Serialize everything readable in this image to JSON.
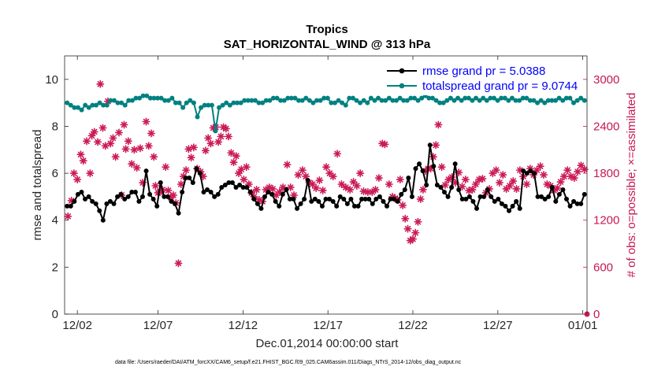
{
  "chart_data": {
    "type": "line",
    "title": "Tropics",
    "subtitle": "SAT_HORIZONTAL_WIND @ 313 hPa",
    "xlabel": "Dec.01,2014 00:00:00 start",
    "ylabel": "rmse and totalspread",
    "ylabel_right": "# of obs: o=possible; ×=assimilated",
    "footnote": "data file: /Users/raeder/DAI/ATM_forcXX/CAM6_setup/f.e21.FHIST_BGC.f09_025.CAM6assim.011/Diags_NTrS_2014-12/obs_diag_output.nc",
    "xlim": [
      0.5,
      31.25
    ],
    "ylim": [
      0,
      11
    ],
    "ylim_right": [
      0,
      3300
    ],
    "x_ticks": [
      1.25,
      6,
      11,
      16,
      21,
      26,
      31
    ],
    "x_tick_labels": [
      "12/02",
      "12/07",
      "12/12",
      "12/17",
      "12/22",
      "12/27",
      "01/01"
    ],
    "y_ticks": [
      0,
      2,
      4,
      6,
      8,
      10
    ],
    "y_tick_labels": [
      "0",
      "2",
      "4",
      "6",
      "8",
      "10"
    ],
    "y_right_ticks": [
      0,
      600,
      1200,
      1800,
      2400,
      3000
    ],
    "y_right_tick_labels": [
      "0",
      "600",
      "1200",
      "1800",
      "2400",
      "3000"
    ],
    "colors": {
      "rmse": "#000000",
      "spread": "#008080",
      "obs": "#cc1a55",
      "legend_text": "#0000ff"
    },
    "series": [
      {
        "name": "rmse grand pr = 5.0388",
        "marker": "filled-circle",
        "values": [
          4.6,
          4.6,
          4.8,
          5.1,
          5.2,
          4.9,
          5.0,
          4.8,
          4.7,
          4.4,
          4.0,
          4.7,
          4.8,
          4.7,
          5.0,
          5.1,
          4.9,
          5.0,
          5.2,
          5.2,
          4.8,
          5.0,
          6.1,
          5.1,
          4.9,
          4.6,
          5.6,
          5.0,
          5.0,
          4.8,
          4.7,
          4.3,
          5.2,
          5.8,
          5.8,
          5.6,
          6.2,
          6.0,
          5.2,
          5.3,
          5.2,
          5.0,
          5.1,
          5.4,
          5.5,
          5.6,
          5.6,
          5.4,
          5.5,
          5.4,
          5.4,
          5.2,
          4.9,
          4.7,
          4.5,
          5.0,
          5.2,
          5.1,
          4.8,
          4.6,
          5.1,
          5.3,
          4.9,
          4.9,
          4.5,
          4.7,
          4.9,
          5.7,
          4.8,
          4.9,
          4.8,
          4.6,
          4.9,
          4.9,
          4.8,
          4.6,
          5.0,
          4.9,
          4.7,
          4.9,
          4.6,
          4.6,
          4.9,
          4.9,
          4.9,
          4.7,
          4.9,
          5.0,
          4.8,
          4.6,
          4.9,
          4.9,
          4.8,
          5.1,
          5.3,
          5.8,
          5.0,
          6.2,
          6.4,
          6.1,
          5.5,
          7.2,
          6.3,
          5.5,
          5.4,
          5.2,
          5.0,
          5.4,
          6.4,
          5.3,
          4.9,
          4.9,
          5.0,
          4.8,
          4.5,
          5.0,
          5.0,
          5.3,
          5.0,
          4.8,
          4.9,
          4.7,
          4.6,
          4.4,
          4.6,
          4.8,
          4.5,
          6.1,
          6.0,
          6.1,
          6.0,
          5.0,
          5.0,
          4.9,
          5.0,
          5.4,
          4.8,
          5.1,
          5.3,
          4.9,
          4.6,
          4.8,
          4.7,
          4.7,
          5.1
        ]
      },
      {
        "name": "totalspread grand pr = 9.0744",
        "marker": "filled-circle",
        "values": [
          9.0,
          8.9,
          8.8,
          8.8,
          8.7,
          8.9,
          8.8,
          8.9,
          8.9,
          9.0,
          8.9,
          8.9,
          9.1,
          9.1,
          9.0,
          9.0,
          8.9,
          9.1,
          9.1,
          9.2,
          9.2,
          9.3,
          9.3,
          9.2,
          9.2,
          9.2,
          9.2,
          9.1,
          9.1,
          9.2,
          9.0,
          9.0,
          8.8,
          9.0,
          9.1,
          9.0,
          8.4,
          8.8,
          8.9,
          8.9,
          8.9,
          7.8,
          8.8,
          8.9,
          9.0,
          8.9,
          9.0,
          9.0,
          9.0,
          9.1,
          9.1,
          9.1,
          9.1,
          9.0,
          9.0,
          9.1,
          9.1,
          9.2,
          9.2,
          9.1,
          9.1,
          9.2,
          9.2,
          9.2,
          9.1,
          9.1,
          9.2,
          9.1,
          9.0,
          9.1,
          9.1,
          9.2,
          9.2,
          9.0,
          9.0,
          9.1,
          9.0,
          8.9,
          9.2,
          9.2,
          9.1,
          9.0,
          9.1,
          9.0,
          9.2,
          9.1,
          9.2,
          9.1,
          9.1,
          9.2,
          9.1,
          9.1,
          9.2,
          9.1,
          9.1,
          9.2,
          9.2,
          9.1,
          9.2,
          9.3,
          9.2,
          9.2,
          9.1,
          9.0,
          9.0,
          9.1,
          9.2,
          9.1,
          9.2,
          9.1,
          9.2,
          9.2,
          9.1,
          9.2,
          9.1,
          9.2,
          9.1,
          9.2,
          9.2,
          9.1,
          9.2,
          9.2,
          9.1,
          9.2,
          9.1,
          9.1,
          9.2,
          9.2,
          9.1,
          9.1,
          9.0,
          9.1,
          9.0,
          9.1,
          9.1,
          9.1,
          9.2,
          9.1,
          9.2,
          9.2,
          9.0,
          9.1,
          9.2,
          9.1
        ]
      }
    ],
    "obs_series": {
      "name": "# of obs (assimilated)",
      "axis": "right",
      "marker": "asterisk",
      "points": [
        [
          0.7,
          1250
        ],
        [
          0.9,
          1450
        ],
        [
          1.05,
          1800
        ],
        [
          1.25,
          1720
        ],
        [
          1.45,
          2040
        ],
        [
          1.6,
          1960
        ],
        [
          1.8,
          2210
        ],
        [
          2.0,
          1800
        ],
        [
          2.1,
          2280
        ],
        [
          2.25,
          2330
        ],
        [
          2.45,
          2200
        ],
        [
          2.6,
          2940
        ],
        [
          2.75,
          2380
        ],
        [
          2.9,
          2150
        ],
        [
          3.05,
          2720
        ],
        [
          3.2,
          2180
        ],
        [
          3.35,
          2250
        ],
        [
          3.5,
          2010
        ],
        [
          3.7,
          2320
        ],
        [
          3.85,
          1520
        ],
        [
          4.0,
          2420
        ],
        [
          4.1,
          2110
        ],
        [
          4.25,
          2210
        ],
        [
          4.45,
          1920
        ],
        [
          4.6,
          2100
        ],
        [
          4.75,
          1870
        ],
        [
          4.95,
          2120
        ],
        [
          5.1,
          1680
        ],
        [
          5.3,
          2460
        ],
        [
          5.45,
          2150
        ],
        [
          5.6,
          2310
        ],
        [
          5.75,
          2010
        ],
        [
          5.85,
          1640
        ],
        [
          6.0,
          1550
        ],
        [
          6.1,
          1560
        ],
        [
          6.25,
          1590
        ],
        [
          6.45,
          1880
        ],
        [
          6.6,
          1580
        ],
        [
          6.75,
          1490
        ],
        [
          6.9,
          1520
        ],
        [
          7.05,
          1420
        ],
        [
          7.2,
          650
        ],
        [
          7.35,
          1660
        ],
        [
          7.5,
          1760
        ],
        [
          7.65,
          1840
        ],
        [
          7.8,
          2110
        ],
        [
          7.95,
          2000
        ],
        [
          8.1,
          2130
        ],
        [
          8.3,
          1860
        ],
        [
          8.5,
          1820
        ],
        [
          8.65,
          1760
        ],
        [
          8.8,
          2090
        ],
        [
          8.95,
          2250
        ],
        [
          9.1,
          2180
        ],
        [
          9.25,
          2380
        ],
        [
          9.4,
          2390
        ],
        [
          9.55,
          2200
        ],
        [
          9.7,
          2270
        ],
        [
          9.85,
          2390
        ],
        [
          10.0,
          2370
        ],
        [
          10.15,
          2270
        ],
        [
          10.3,
          2060
        ],
        [
          10.45,
          1940
        ],
        [
          10.6,
          2020
        ],
        [
          10.75,
          1800
        ],
        [
          10.9,
          1850
        ],
        [
          11.05,
          1720
        ],
        [
          11.2,
          1880
        ],
        [
          11.35,
          1660
        ],
        [
          11.5,
          1550
        ],
        [
          11.65,
          1500
        ],
        [
          11.8,
          1590
        ],
        [
          11.95,
          1460
        ],
        [
          12.15,
          1440
        ],
        [
          12.35,
          1590
        ],
        [
          12.55,
          1620
        ],
        [
          12.75,
          1600
        ],
        [
          12.95,
          1520
        ],
        [
          13.15,
          1560
        ],
        [
          13.35,
          1620
        ],
        [
          13.6,
          1910
        ],
        [
          13.8,
          1620
        ],
        [
          14.0,
          1520
        ],
        [
          14.25,
          1780
        ],
        [
          14.5,
          1840
        ],
        [
          14.7,
          1760
        ],
        [
          14.9,
          1680
        ],
        [
          15.1,
          1660
        ],
        [
          15.3,
          1610
        ],
        [
          15.5,
          1710
        ],
        [
          15.7,
          1580
        ],
        [
          15.9,
          1880
        ],
        [
          16.1,
          1800
        ],
        [
          16.3,
          1760
        ],
        [
          16.55,
          2050
        ],
        [
          16.8,
          1660
        ],
        [
          17.05,
          1620
        ],
        [
          17.3,
          1590
        ],
        [
          17.5,
          1690
        ],
        [
          17.7,
          1640
        ],
        [
          17.9,
          1800
        ],
        [
          18.1,
          1570
        ],
        [
          18.35,
          1560
        ],
        [
          18.6,
          1560
        ],
        [
          18.8,
          1590
        ],
        [
          19.0,
          1740
        ],
        [
          19.2,
          2180
        ],
        [
          19.35,
          2170
        ],
        [
          19.6,
          1660
        ],
        [
          19.8,
          1500
        ],
        [
          19.95,
          1480
        ],
        [
          20.1,
          1460
        ],
        [
          20.25,
          1720
        ],
        [
          20.4,
          1390
        ],
        [
          20.55,
          1220
        ],
        [
          20.7,
          1090
        ],
        [
          20.85,
          940
        ],
        [
          21.0,
          960
        ],
        [
          21.15,
          1040
        ],
        [
          21.3,
          1180
        ],
        [
          21.45,
          1470
        ],
        [
          21.6,
          1590
        ],
        [
          21.75,
          1830
        ],
        [
          21.9,
          1860
        ],
        [
          22.05,
          1860
        ],
        [
          22.2,
          2010
        ],
        [
          22.35,
          2160
        ],
        [
          22.5,
          2420
        ],
        [
          22.7,
          1880
        ],
        [
          22.9,
          1650
        ],
        [
          23.1,
          1720
        ],
        [
          23.3,
          1750
        ],
        [
          23.5,
          1680
        ],
        [
          23.7,
          1810
        ],
        [
          23.9,
          1630
        ],
        [
          24.1,
          1720
        ],
        [
          24.3,
          1580
        ],
        [
          24.5,
          1590
        ],
        [
          24.7,
          1660
        ],
        [
          24.9,
          1720
        ],
        [
          25.1,
          1730
        ],
        [
          25.3,
          1550
        ],
        [
          25.5,
          1600
        ],
        [
          25.7,
          1800
        ],
        [
          25.9,
          1840
        ],
        [
          26.1,
          1680
        ],
        [
          26.3,
          1780
        ],
        [
          26.5,
          1600
        ],
        [
          26.7,
          1640
        ],
        [
          26.9,
          1700
        ],
        [
          27.1,
          1600
        ],
        [
          27.3,
          1840
        ],
        [
          27.5,
          1760
        ],
        [
          27.7,
          1660
        ],
        [
          27.9,
          1860
        ],
        [
          28.1,
          1780
        ],
        [
          28.3,
          1840
        ],
        [
          28.5,
          1890
        ],
        [
          28.7,
          1780
        ],
        [
          28.9,
          1660
        ],
        [
          29.1,
          1640
        ],
        [
          29.3,
          1580
        ],
        [
          29.5,
          1610
        ],
        [
          29.7,
          1690
        ],
        [
          29.9,
          1760
        ],
        [
          30.1,
          1840
        ],
        [
          30.3,
          1760
        ],
        [
          30.5,
          1740
        ],
        [
          30.7,
          1820
        ],
        [
          30.9,
          1900
        ],
        [
          31.1,
          1850
        ]
      ]
    }
  }
}
